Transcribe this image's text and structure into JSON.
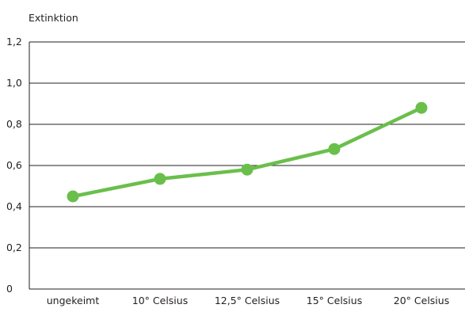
{
  "chart_data": {
    "type": "line",
    "ylabel": "Extinktion",
    "xlabel": "",
    "categories": [
      "ungekeimt",
      "10° Celsius",
      "12,5° Celsius",
      "15° Celsius",
      "20° Celsius"
    ],
    "values": [
      0.45,
      0.535,
      0.58,
      0.68,
      0.88
    ],
    "ylim": [
      0,
      1.2
    ],
    "yticks": [
      "0",
      "0,2",
      "0,4",
      "0,6",
      "0,8",
      "1,0",
      "1,2"
    ],
    "grid": true,
    "legend": "none",
    "line_color": "#6abf4b",
    "axis_color": "#231f20"
  }
}
